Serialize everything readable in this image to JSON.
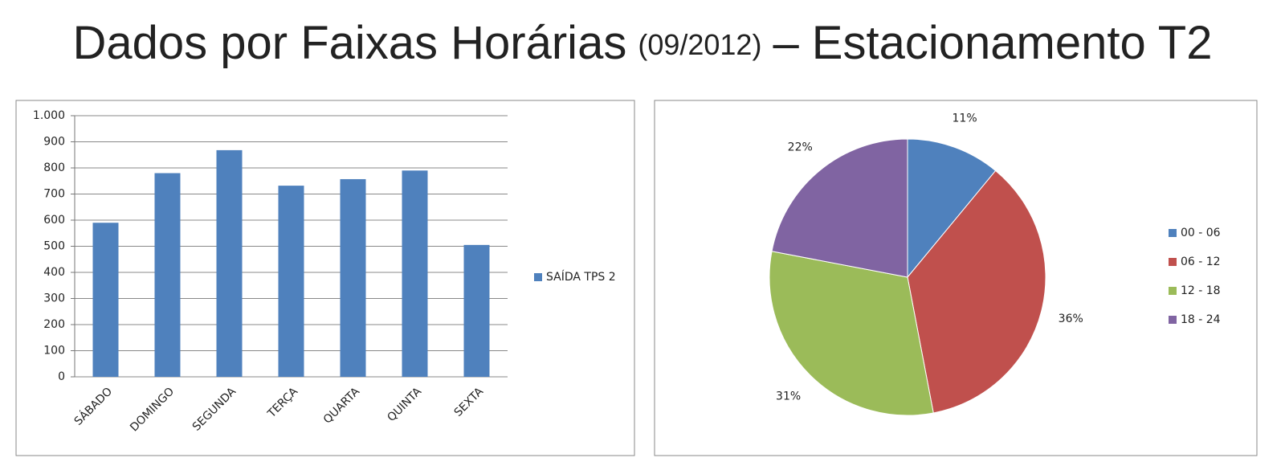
{
  "header": {
    "title_main": "Dados por Faixas Horárias",
    "title_date": "(09/2012)",
    "title_rest": "– Estacionamento T2"
  },
  "chart_data": [
    {
      "type": "bar",
      "categories": [
        "SÁBADO",
        "DOMINGO",
        "SEGUNDA",
        "TERÇA",
        "QUARTA",
        "QUINTA",
        "SEXTA"
      ],
      "series": [
        {
          "name": "SAÍDA TPS 2",
          "color": "#4f81bd",
          "values": [
            590,
            780,
            868,
            732,
            757,
            790,
            505
          ]
        }
      ],
      "ylim": [
        0,
        1000
      ],
      "yticks": [
        0,
        100,
        200,
        300,
        400,
        500,
        600,
        700,
        800,
        900,
        {
          "value": 1000,
          "label": "1.000"
        }
      ],
      "grid": true,
      "legend": "right"
    },
    {
      "type": "pie",
      "categories": [
        "00 - 06",
        "06 - 12",
        "12 - 18",
        "18 - 24"
      ],
      "values": [
        11,
        36,
        31,
        22
      ],
      "value_labels": [
        "11%",
        "36%",
        "31%",
        "22%"
      ],
      "colors": [
        "#4f81bd",
        "#c0504d",
        "#9bbb59",
        "#8064a2"
      ],
      "legend": "right"
    }
  ]
}
